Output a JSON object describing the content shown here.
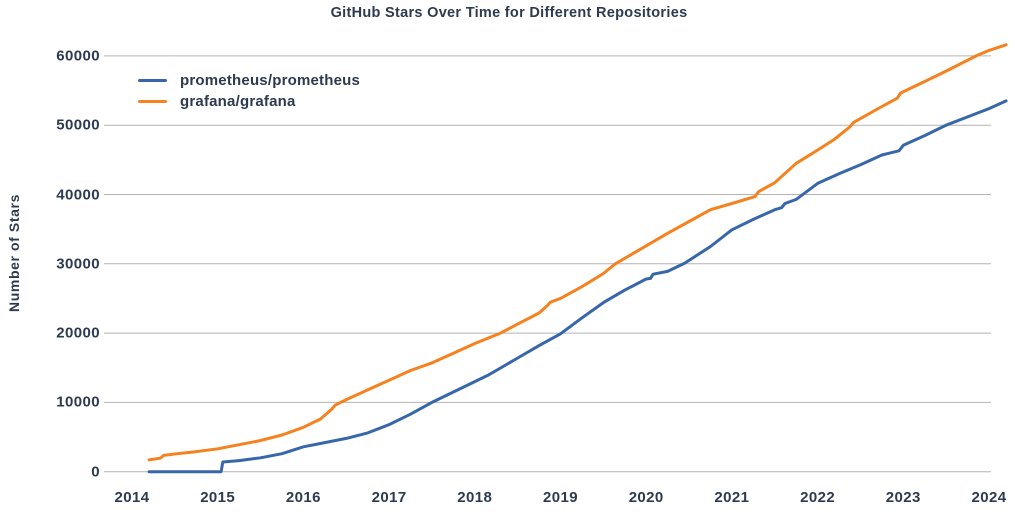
{
  "chart_data": {
    "type": "line",
    "title": "GitHub Stars Over Time for Different Repositories",
    "xlabel": "",
    "ylabel": "Number of Stars",
    "x_ticks": [
      2014,
      2015,
      2016,
      2017,
      2018,
      2019,
      2020,
      2021,
      2022,
      2023,
      2024
    ],
    "y_ticks": [
      0,
      10000,
      20000,
      30000,
      40000,
      50000,
      60000
    ],
    "xlim": [
      2013.7,
      2024.35
    ],
    "ylim": [
      0,
      62000
    ],
    "grid": "horizontal",
    "legend_position": "upper-left",
    "background_color": "#ffffff",
    "text_color": "#2d3a50",
    "grid_color": "#b3b3b3",
    "series": [
      {
        "name": "prometheus/prometheus",
        "color": "#3766ab",
        "x": [
          2014.2,
          2014.5,
          2014.75,
          2015.0,
          2015.04,
          2015.06,
          2015.25,
          2015.5,
          2015.75,
          2016.0,
          2016.25,
          2016.5,
          2016.75,
          2017.0,
          2017.25,
          2017.5,
          2017.75,
          2018.0,
          2018.15,
          2018.25,
          2018.5,
          2018.75,
          2019.0,
          2019.25,
          2019.5,
          2019.75,
          2020.0,
          2020.05,
          2020.08,
          2020.25,
          2020.45,
          2020.75,
          2021.0,
          2021.25,
          2021.5,
          2021.58,
          2021.62,
          2021.75,
          2022.0,
          2022.25,
          2022.5,
          2022.75,
          2022.95,
          2023.0,
          2023.25,
          2023.5,
          2023.75,
          2024.0,
          2024.2
        ],
        "y": [
          0,
          0,
          0,
          0,
          0,
          1400,
          1600,
          2000,
          2600,
          3600,
          4200,
          4800,
          5600,
          6800,
          8300,
          10000,
          11500,
          13000,
          13900,
          14600,
          16400,
          18200,
          19900,
          22200,
          24400,
          26200,
          27800,
          27900,
          28500,
          28900,
          30100,
          32500,
          34900,
          36400,
          37800,
          38100,
          38700,
          39300,
          41600,
          43000,
          44300,
          45700,
          46300,
          47100,
          48500,
          50000,
          51200,
          52400,
          53500
        ]
      },
      {
        "name": "grafana/grafana",
        "color": "#f5821e",
        "x": [
          2014.2,
          2014.33,
          2014.37,
          2014.5,
          2014.75,
          2015.0,
          2015.25,
          2015.5,
          2015.75,
          2016.0,
          2016.2,
          2016.33,
          2016.37,
          2016.5,
          2016.75,
          2017.0,
          2017.25,
          2017.5,
          2017.75,
          2018.0,
          2018.3,
          2018.5,
          2018.75,
          2018.85,
          2018.88,
          2019.0,
          2019.25,
          2019.5,
          2019.64,
          2019.75,
          2020.0,
          2020.25,
          2020.5,
          2020.75,
          2021.0,
          2021.27,
          2021.31,
          2021.5,
          2021.75,
          2022.0,
          2022.2,
          2022.38,
          2022.42,
          2022.75,
          2022.93,
          2022.97,
          2023.25,
          2023.5,
          2023.85,
          2024.0,
          2024.2
        ],
        "y": [
          1700,
          1950,
          2350,
          2550,
          2900,
          3300,
          3900,
          4500,
          5300,
          6400,
          7600,
          9000,
          9600,
          10400,
          11800,
          13200,
          14600,
          15700,
          17100,
          18500,
          20000,
          21300,
          22900,
          24000,
          24450,
          25000,
          26700,
          28600,
          30000,
          30800,
          32600,
          34400,
          36100,
          37800,
          38700,
          39700,
          40400,
          41700,
          44500,
          46400,
          48000,
          49800,
          50400,
          52700,
          53900,
          54650,
          56300,
          57800,
          60000,
          60800,
          61600
        ]
      }
    ]
  }
}
